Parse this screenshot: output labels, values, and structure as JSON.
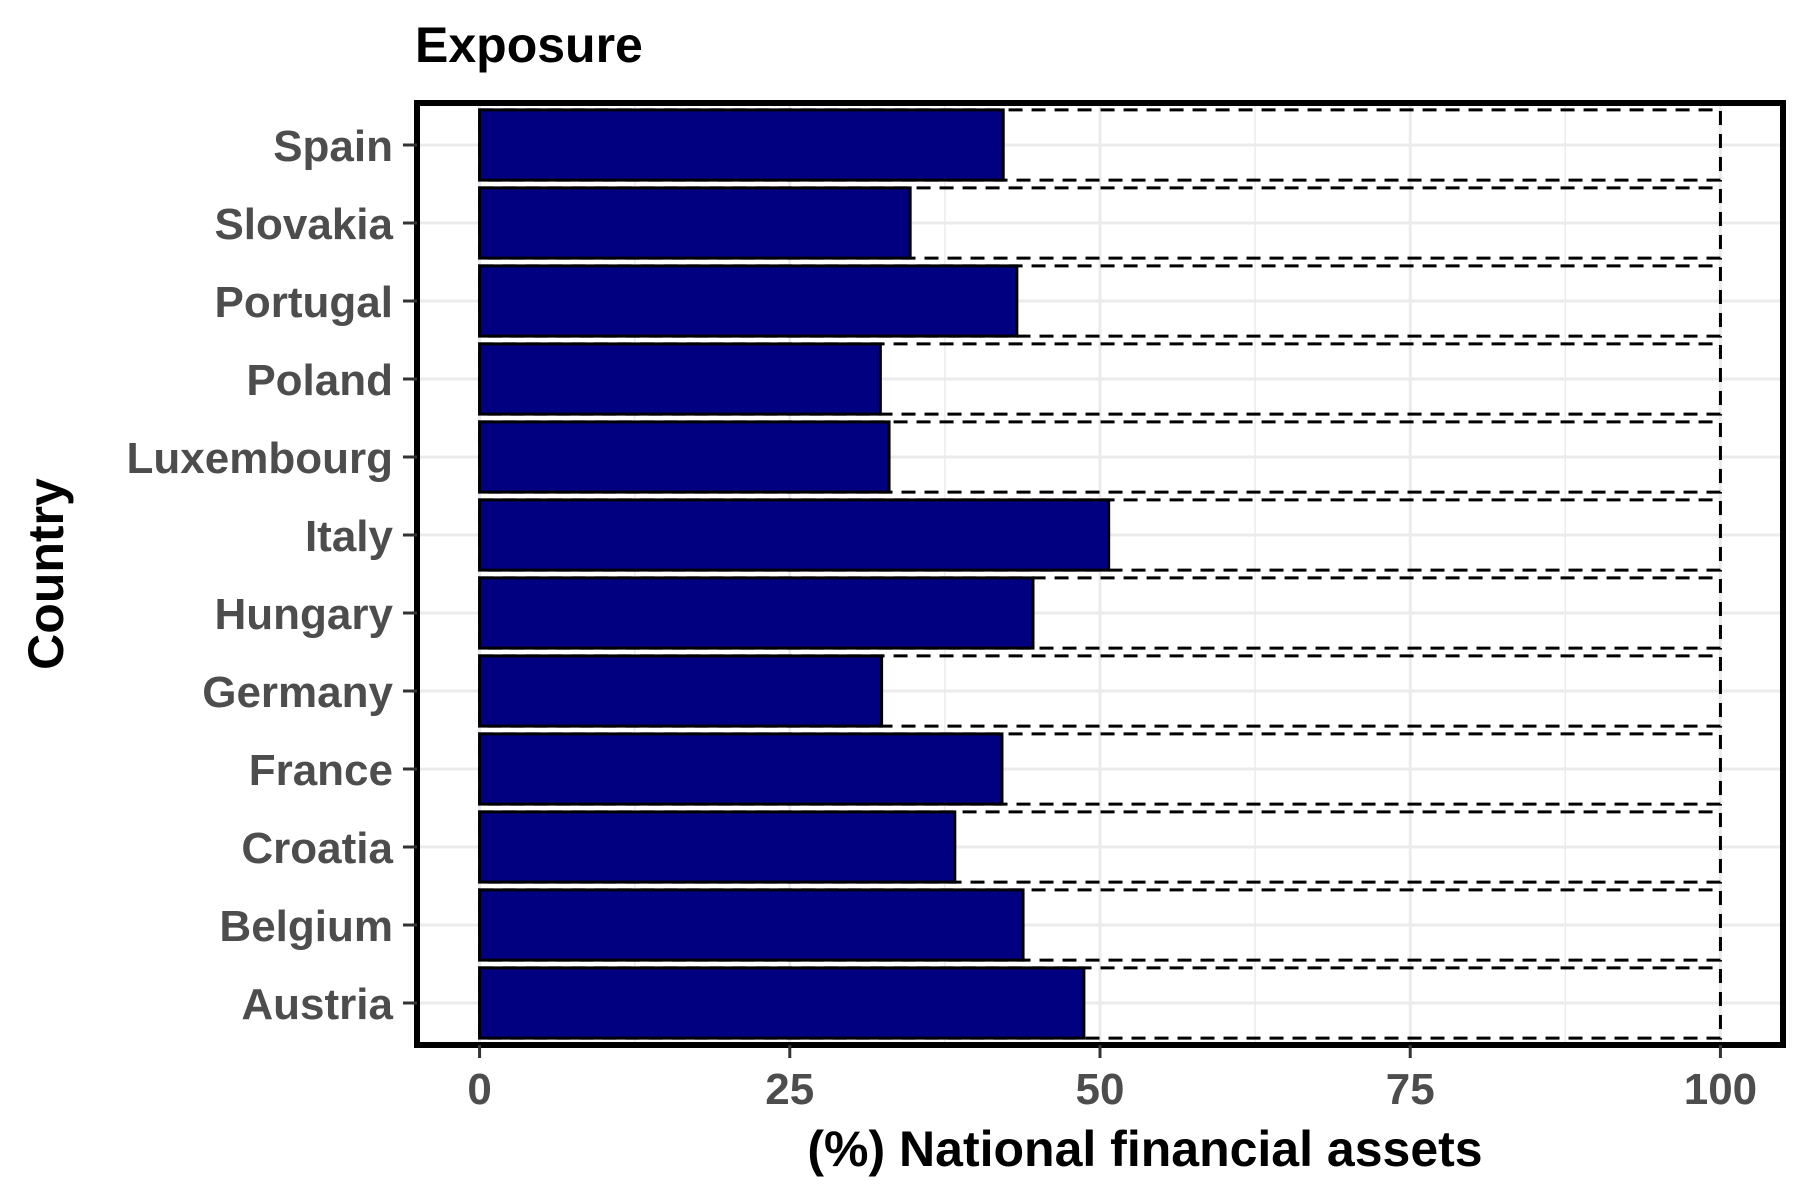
{
  "chart_data": {
    "type": "bar",
    "orientation": "horizontal",
    "title": "Exposure",
    "xlabel": "(%) National financial assets",
    "ylabel": "Country",
    "categories": [
      "Austria",
      "Belgium",
      "Croatia",
      "France",
      "Germany",
      "Hungary",
      "Italy",
      "Luxembourg",
      "Poland",
      "Portugal",
      "Slovakia",
      "Spain"
    ],
    "values": [
      48.7,
      43.8,
      38.3,
      42.1,
      32.4,
      44.6,
      50.7,
      33.0,
      32.3,
      43.3,
      34.7,
      42.2
    ],
    "reference_value": 100,
    "xlim": [
      -4.8,
      104.8
    ],
    "xticks": [
      0,
      25,
      50,
      75,
      100
    ],
    "bar_color": "#000080",
    "bar_outline": "#000000",
    "reference_outline": "dashed black",
    "grid": true,
    "legend": "none"
  }
}
